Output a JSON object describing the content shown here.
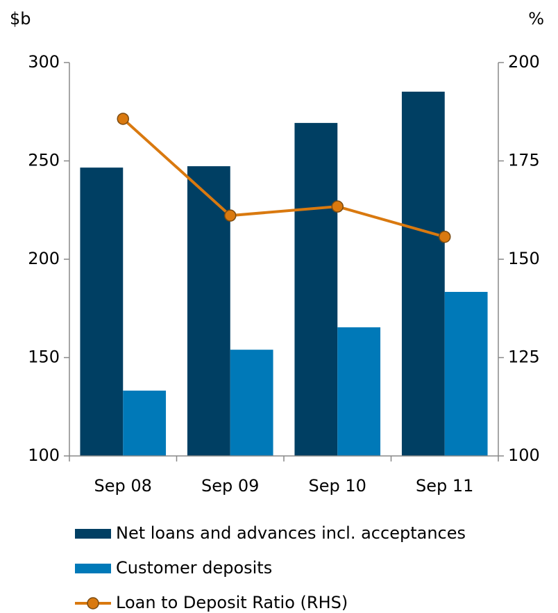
{
  "chart_data": {
    "type": "bar",
    "y_label": "$b",
    "y2_label": "%",
    "categories": [
      "Sep 08",
      "Sep 09",
      "Sep 10",
      "Sep 11"
    ],
    "series": [
      {
        "name": "Net loans and advances incl. acceptances",
        "color": "#003f63",
        "values": [
          246.6,
          247.3,
          269.3,
          285.2
        ]
      },
      {
        "name": "Customer deposits",
        "color": "#0079b8",
        "values": [
          133.2,
          154,
          165.4,
          183.4
        ]
      },
      {
        "name": "Loan to Deposit Ratio (RHS)",
        "type": "line",
        "axis": "y2",
        "color": "#d9790f",
        "values": [
          185.7,
          161.1,
          163.4,
          155.7
        ]
      }
    ],
    "ylim": [
      100,
      300
    ],
    "yticks": [
      100,
      150,
      200,
      250,
      300
    ],
    "y2lim": [
      100,
      200
    ],
    "y2ticks": [
      100,
      125,
      150,
      175,
      200
    ],
    "legend": "bottom"
  }
}
